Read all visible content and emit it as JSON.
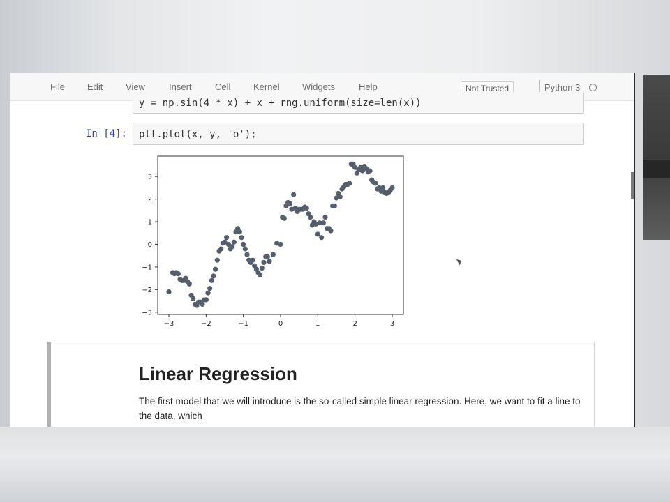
{
  "menu": {
    "items": [
      "File",
      "Edit",
      "View",
      "Insert",
      "Cell",
      "Kernel",
      "Widgets",
      "Help"
    ],
    "trust_label": "Not Trusted",
    "kernel_name": "Python 3"
  },
  "cells": {
    "prev_code": "y = np.sin(4 * x) + x + rng.uniform(size=len(x))",
    "prompt": "In [4]:",
    "code": "plt.plot(x, y, 'o');"
  },
  "markdown": {
    "title": "Linear Regression",
    "text": "The first model that we will introduce is the so-called simple linear regression. Here, we want to fit a line to the data, which"
  },
  "chart_data": {
    "type": "scatter",
    "title": "",
    "xlabel": "",
    "ylabel": "",
    "xlim": [
      -3.3,
      3.3
    ],
    "ylim": [
      -3.1,
      3.9
    ],
    "xticks": [
      -3,
      -2,
      -1,
      0,
      1,
      2,
      3
    ],
    "yticks": [
      -3,
      -2,
      -1,
      0,
      1,
      2,
      3
    ],
    "xtick_labels": [
      "−3",
      "−2",
      "−1",
      "0",
      "1",
      "2",
      "3"
    ],
    "ytick_labels": [
      "−3",
      "−2",
      "−1",
      "0",
      "1",
      "2",
      "3"
    ],
    "color": "#565e6c",
    "grid": false,
    "x": [
      -3.0,
      -2.9,
      -2.85,
      -2.8,
      -2.75,
      -2.7,
      -2.65,
      -2.6,
      -2.55,
      -2.5,
      -2.45,
      -2.4,
      -2.35,
      -2.3,
      -2.25,
      -2.2,
      -2.15,
      -2.1,
      -2.05,
      -2.0,
      -1.95,
      -1.9,
      -1.85,
      -1.8,
      -1.75,
      -1.7,
      -1.65,
      -1.6,
      -1.55,
      -1.5,
      -1.45,
      -1.4,
      -1.35,
      -1.3,
      -1.25,
      -1.2,
      -1.15,
      -1.1,
      -1.05,
      -1.0,
      -0.95,
      -0.9,
      -0.85,
      -0.8,
      -0.75,
      -0.7,
      -0.65,
      -0.6,
      -0.55,
      -0.5,
      -0.45,
      -0.4,
      -0.35,
      -0.3,
      -0.2,
      -0.1,
      0.0,
      0.05,
      0.1,
      0.15,
      0.2,
      0.25,
      0.3,
      0.35,
      0.4,
      0.45,
      0.5,
      0.55,
      0.6,
      0.65,
      0.7,
      0.75,
      0.8,
      0.85,
      0.9,
      0.95,
      1.0,
      1.05,
      1.1,
      1.15,
      1.2,
      1.25,
      1.3,
      1.35,
      1.4,
      1.45,
      1.5,
      1.55,
      1.6,
      1.65,
      1.7,
      1.75,
      1.8,
      1.85,
      1.9,
      1.95,
      2.0,
      2.05,
      2.1,
      2.15,
      2.2,
      2.25,
      2.3,
      2.35,
      2.4,
      2.45,
      2.5,
      2.55,
      2.6,
      2.65,
      2.7,
      2.75,
      2.8,
      2.85,
      2.9,
      2.95,
      3.0
    ],
    "y": [
      -2.1,
      -1.25,
      -1.3,
      -1.25,
      -1.3,
      -1.55,
      -1.6,
      -1.6,
      -1.5,
      -1.65,
      -1.75,
      -2.25,
      -2.4,
      -2.65,
      -2.7,
      -2.55,
      -2.55,
      -2.65,
      -2.45,
      -2.45,
      -2.15,
      -1.95,
      -1.6,
      -1.4,
      -1.1,
      -0.7,
      -0.3,
      -0.2,
      0.05,
      0.1,
      0.3,
      0.0,
      -0.2,
      -0.1,
      0.1,
      0.55,
      0.7,
      0.55,
      0.3,
      0.0,
      -0.2,
      -0.45,
      -0.7,
      -0.8,
      -0.7,
      -0.95,
      -1.1,
      -1.25,
      -1.35,
      -1.05,
      -0.8,
      -0.55,
      -0.55,
      -0.75,
      -0.45,
      0.05,
      0.0,
      1.2,
      1.15,
      1.7,
      1.85,
      1.8,
      1.55,
      2.2,
      1.6,
      1.45,
      1.55,
      1.55,
      1.55,
      1.65,
      1.6,
      1.35,
      1.2,
      0.85,
      1.0,
      0.9,
      0.45,
      0.95,
      0.3,
      0.95,
      1.2,
      0.7,
      0.7,
      0.6,
      1.7,
      1.7,
      2.05,
      2.25,
      2.1,
      2.45,
      2.55,
      2.65,
      2.65,
      2.7,
      3.55,
      3.55,
      3.4,
      3.15,
      3.3,
      3.4,
      3.25,
      3.45,
      3.35,
      3.2,
      3.25,
      2.85,
      2.75,
      2.7,
      2.45,
      2.5,
      2.35,
      2.5,
      2.3,
      2.25,
      2.3,
      2.4,
      2.5
    ]
  }
}
